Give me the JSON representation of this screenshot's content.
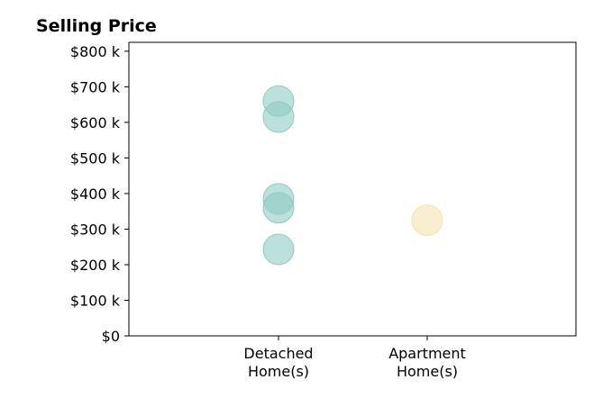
{
  "chart_data": {
    "type": "scatter",
    "title": "Selling Price",
    "xlabel": "",
    "ylabel": "",
    "categories": [
      "Detached\nHome(s)",
      "Apartment\nHome(s)"
    ],
    "ylim": [
      0,
      825000
    ],
    "yticks": [
      0,
      100000,
      200000,
      300000,
      400000,
      500000,
      600000,
      700000,
      800000
    ],
    "ytick_labels": [
      "$0",
      "$100 k",
      "$200 k",
      "$300 k",
      "$400 k",
      "$500 k",
      "$600 k",
      "$700 k",
      "$800 k"
    ],
    "grid": false,
    "series": [
      {
        "category": 0,
        "values": [
          660000,
          615000,
          385000,
          360000,
          243000
        ],
        "color": "#8fcbc3"
      },
      {
        "category": 1,
        "values": [
          325000
        ],
        "color": "#f7e3b3"
      }
    ]
  }
}
